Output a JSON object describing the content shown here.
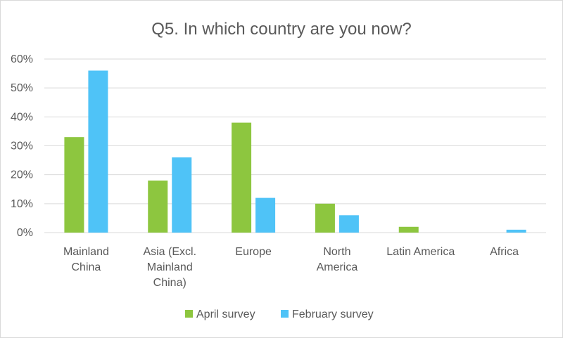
{
  "chart_data": {
    "type": "bar",
    "title": "Q5. In which country are you now?",
    "categories": [
      "Mainland China",
      "Asia (Excl. Mainland China)",
      "Europe",
      "North America",
      "Latin America",
      "Africa"
    ],
    "category_lines": [
      [
        "Mainland",
        "China"
      ],
      [
        "Asia (Excl.",
        "Mainland",
        "China)"
      ],
      [
        "Europe"
      ],
      [
        "North",
        "America"
      ],
      [
        "Latin America"
      ],
      [
        "Africa"
      ]
    ],
    "series": [
      {
        "name": "April survey",
        "color": "#8DC63F",
        "values": [
          33,
          18,
          38,
          10,
          2,
          0
        ]
      },
      {
        "name": "February survey",
        "color": "#4FC3F7",
        "values": [
          56,
          26,
          12,
          6,
          0,
          1
        ]
      }
    ],
    "yticks": [
      "0%",
      "10%",
      "20%",
      "30%",
      "40%",
      "50%",
      "60%"
    ],
    "ylim": [
      0,
      60
    ],
    "ylabel": "",
    "xlabel": "",
    "grid": true,
    "gridline_color": "#d9d9d9",
    "legend_position": "bottom"
  }
}
